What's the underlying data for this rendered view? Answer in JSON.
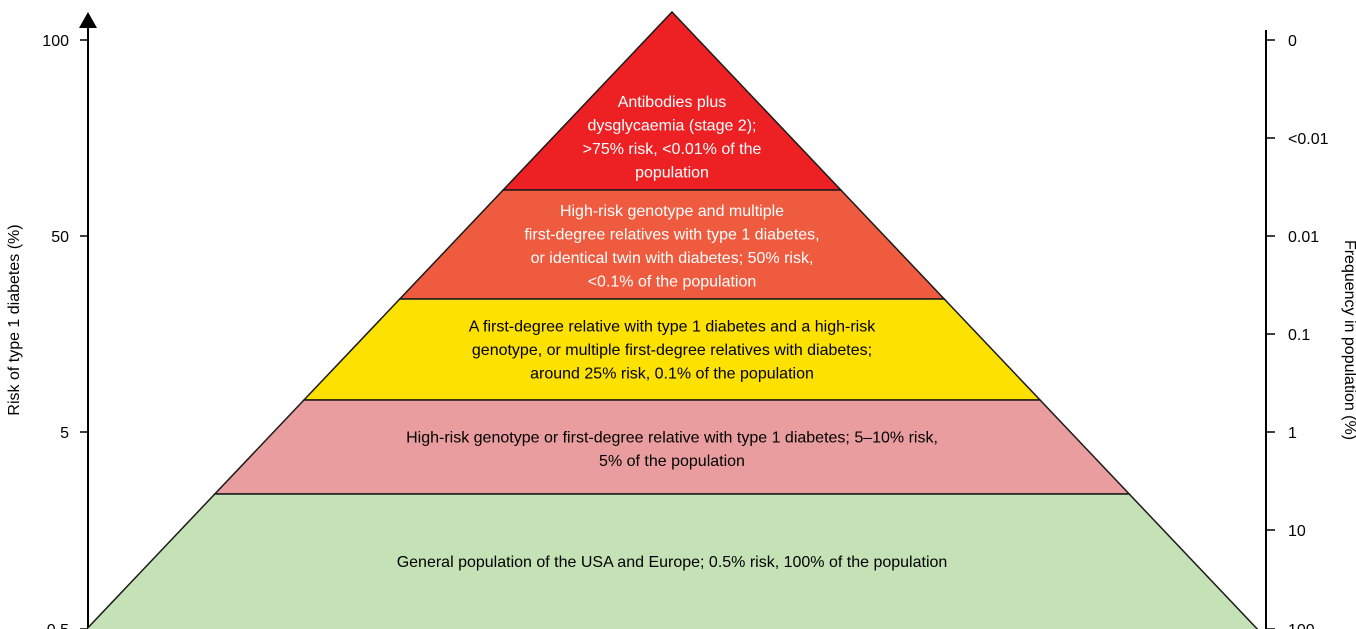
{
  "left_axis": {
    "title": "Risk of type 1 diabetes (%)",
    "ticks": [
      "100",
      "50",
      "5",
      "0.5"
    ]
  },
  "right_axis": {
    "title": "Frequency in population (%)",
    "ticks": [
      "0",
      "<0.01",
      "0.01",
      "0.1",
      "1",
      "10",
      "100"
    ]
  },
  "tiers": [
    {
      "lines": [
        "Antibodies plus",
        "dysglycaemia (stage 2);",
        ">75% risk, <0.01% of the",
        "population"
      ],
      "fill": "#ed2024",
      "text_color": "#ffffff"
    },
    {
      "lines": [
        "High-risk genotype and multiple",
        "first-degree relatives with type 1 diabetes,",
        "or identical twin with diabetes; 50% risk,",
        "<0.1% of the population"
      ],
      "fill": "#ef5b3f",
      "text_color": "#ffffff"
    },
    {
      "lines": [
        "A first-degree relative with type 1 diabetes and a high-risk",
        "genotype, or multiple first-degree relatives with diabetes;",
        "around 25% risk, 0.1% of the population"
      ],
      "fill": "#fde100",
      "text_color": "#000000"
    },
    {
      "lines": [
        "High-risk genotype or first-degree relative with type 1 diabetes; 5–10% risk,",
        "5% of the population"
      ],
      "fill": "#ea9d9e",
      "text_color": "#000000"
    },
    {
      "lines": [
        "General population of the USA and Europe; 0.5% risk, 100% of the population"
      ],
      "fill": "#c4e2b5",
      "text_color": "#000000"
    }
  ]
}
